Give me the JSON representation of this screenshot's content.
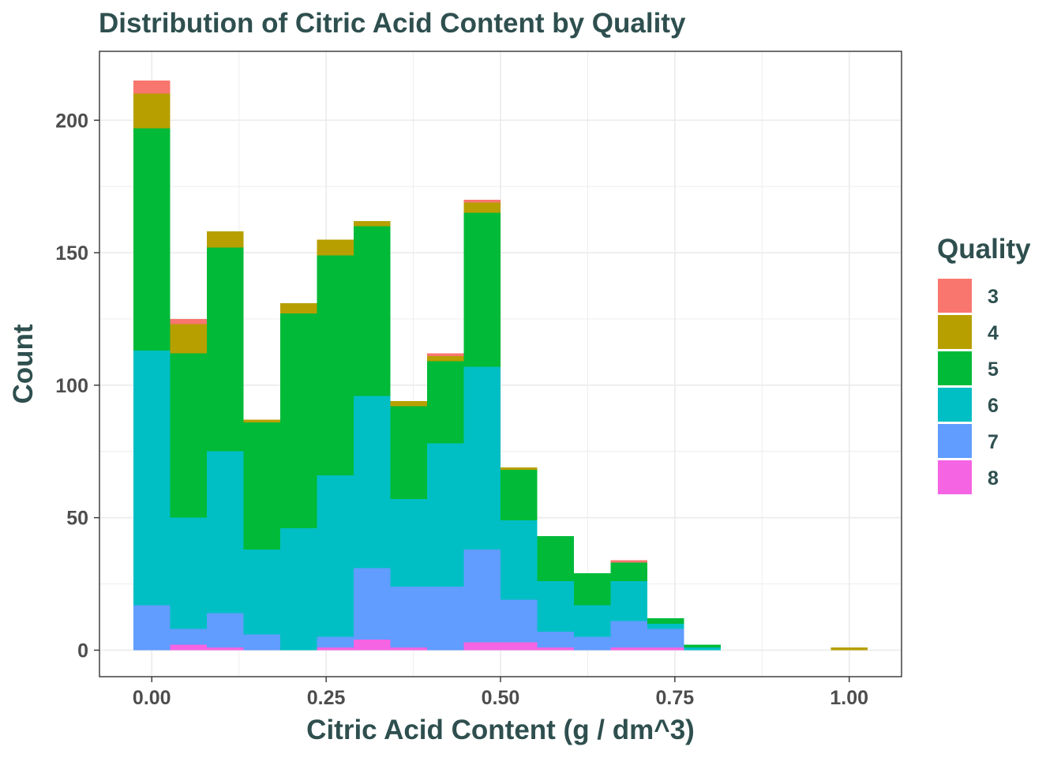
{
  "chart_data": {
    "type": "bar",
    "stacked": true,
    "histogram": true,
    "title": "Distribution of Citric Acid Content by Quality",
    "xlabel": "Citric Acid Content (g / dm^3)",
    "ylabel": "Count",
    "xlim": [
      -0.075,
      1.075
    ],
    "ylim": [
      -10,
      226
    ],
    "x_ticks": [
      0.0,
      0.25,
      0.5,
      0.75,
      1.0
    ],
    "x_tick_labels": [
      "0.00",
      "0.25",
      "0.50",
      "0.75",
      "1.00"
    ],
    "y_ticks": [
      0,
      50,
      100,
      150,
      200
    ],
    "y_tick_labels": [
      "0",
      "50",
      "100",
      "150",
      "200"
    ],
    "grid": true,
    "legend": {
      "title": "Quality",
      "position": "right"
    },
    "bin_width": 0.0526,
    "bin_centers": [
      0.0,
      0.0526,
      0.1053,
      0.1579,
      0.2105,
      0.2632,
      0.3158,
      0.3684,
      0.4211,
      0.4737,
      0.5263,
      0.5789,
      0.6316,
      0.6842,
      0.7368,
      0.7895,
      0.8421,
      0.8947,
      0.9474,
      1.0
    ],
    "series": [
      {
        "name": "8",
        "color": "#f564e3",
        "values": [
          0,
          2,
          1,
          0,
          0,
          1,
          4,
          1,
          0,
          3,
          3,
          1,
          0,
          1,
          1,
          0,
          0,
          0,
          0,
          0
        ]
      },
      {
        "name": "7",
        "color": "#619cff",
        "values": [
          17,
          6,
          13,
          6,
          0,
          4,
          27,
          23,
          24,
          35,
          16,
          6,
          5,
          10,
          7,
          0,
          0,
          0,
          0,
          0
        ]
      },
      {
        "name": "6",
        "color": "#00bfc4",
        "values": [
          96,
          42,
          61,
          32,
          46,
          61,
          65,
          33,
          54,
          69,
          30,
          19,
          12,
          15,
          2,
          1,
          0,
          0,
          0,
          0
        ]
      },
      {
        "name": "5",
        "color": "#00ba38",
        "values": [
          84,
          62,
          77,
          48,
          81,
          83,
          64,
          35,
          31,
          58,
          19,
          17,
          12,
          7,
          2,
          1,
          0,
          0,
          0,
          0
        ]
      },
      {
        "name": "4",
        "color": "#b79f00",
        "values": [
          13,
          11,
          6,
          1,
          4,
          6,
          2,
          2,
          2,
          4,
          1,
          0,
          0,
          0,
          0,
          0,
          0,
          0,
          0,
          1
        ]
      },
      {
        "name": "3",
        "color": "#f8766d",
        "values": [
          5,
          2,
          0,
          0,
          0,
          0,
          0,
          0,
          1,
          1,
          0,
          0,
          0,
          1,
          0,
          0,
          0,
          0,
          0,
          0
        ]
      }
    ],
    "legend_order": [
      "3",
      "4",
      "5",
      "6",
      "7",
      "8"
    ],
    "colors": {
      "title": "#2f4f4f",
      "tick_text": "#4d4d4d",
      "grid": "#ebebeb",
      "panel_border": "#333333"
    }
  }
}
